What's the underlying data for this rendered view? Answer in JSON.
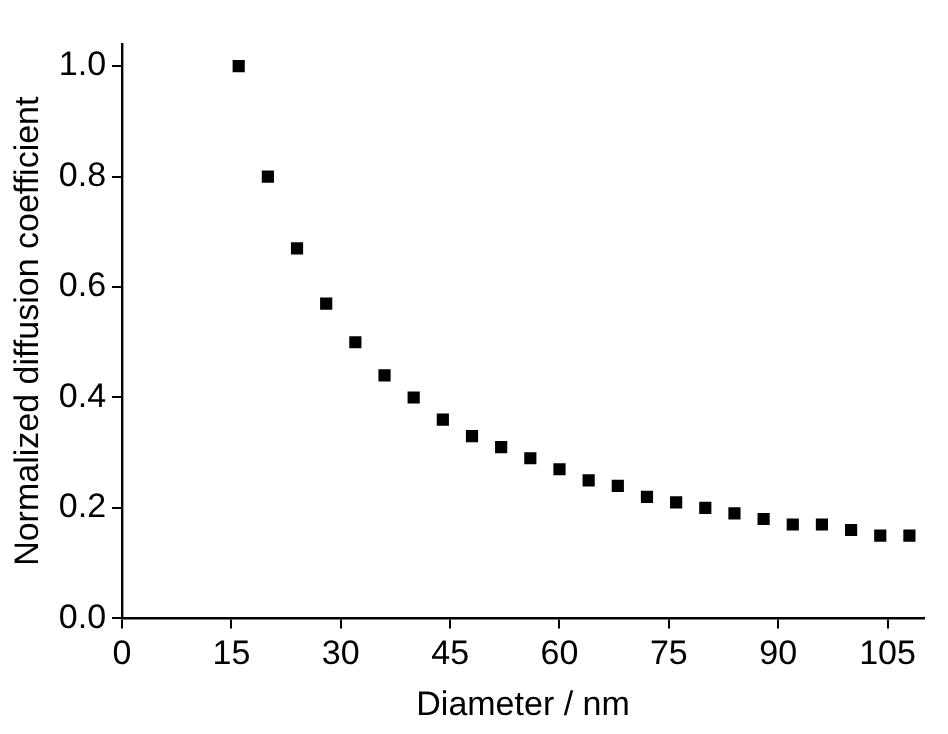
{
  "chart_data": {
    "type": "scatter",
    "xlabel": "Diameter / nm",
    "ylabel": "Normalized diffusion coefficient",
    "x": [
      16,
      20,
      24,
      28,
      32,
      36,
      40,
      44,
      48,
      52,
      56,
      60,
      64,
      68,
      72,
      76,
      80,
      84,
      88,
      92,
      96,
      100,
      104,
      108
    ],
    "series": [
      {
        "color": "#000000",
        "values": [
          1.0,
          0.8,
          0.67,
          0.57,
          0.5,
          0.44,
          0.4,
          0.36,
          0.33,
          0.31,
          0.29,
          0.27,
          0.25,
          0.24,
          0.22,
          0.21,
          0.2,
          0.19,
          0.18,
          0.17,
          0.17,
          0.16,
          0.15,
          0.15
        ]
      }
    ],
    "xlim": [
      0,
      110
    ],
    "ylim": [
      0,
      1.04
    ],
    "xticks": [
      0,
      15,
      30,
      45,
      60,
      75,
      90,
      105
    ],
    "yticks": [
      {
        "value": 0,
        "label": "0.0"
      },
      {
        "value": 0.2,
        "label": "0.2"
      },
      {
        "value": 0.4,
        "label": "0.4"
      },
      {
        "value": 0.6,
        "label": "0.6"
      },
      {
        "value": 0.8,
        "label": "0.8"
      },
      {
        "value": 1,
        "label": "1.0"
      }
    ],
    "marker": "square",
    "grid": false,
    "legend": false
  }
}
